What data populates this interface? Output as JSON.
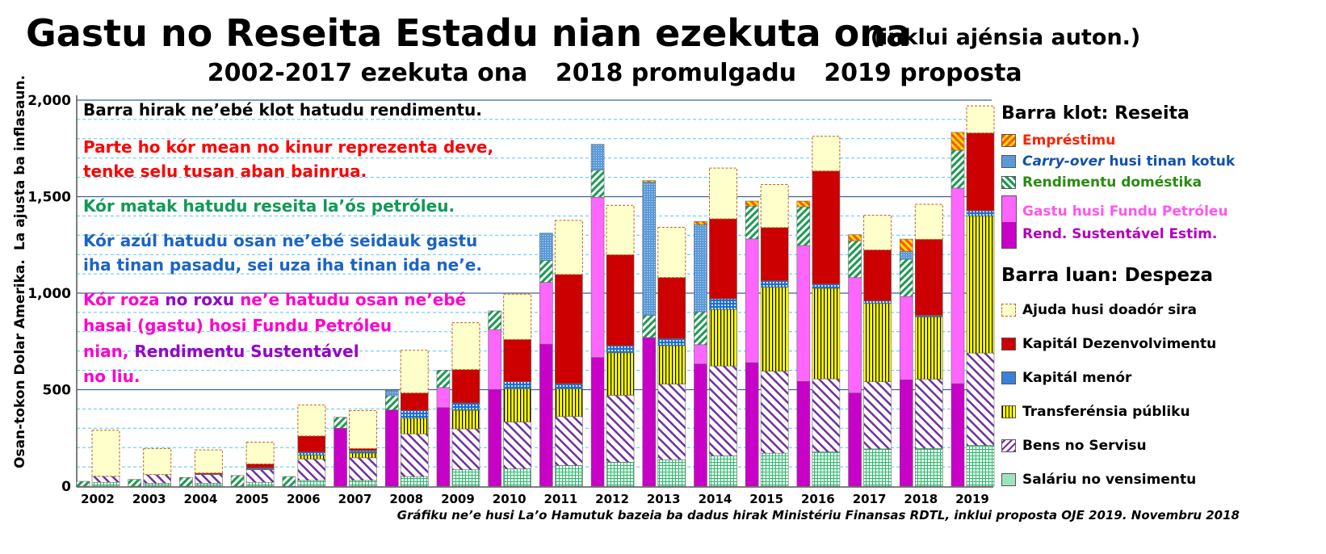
{
  "chart_data": {
    "type": "bar",
    "stacked": true,
    "title": "Gastu no Reseita Estadu nian ezekuta ona",
    "title_note": "(inklui ajénsia auton.)",
    "subtitle": [
      "2002-2017 ezekuta ona",
      "2018 promulgadu",
      "2019 proposta"
    ],
    "ylabel": [
      "Osan-tokon Dolar Amerika.",
      "La ajusta ba inflasaun."
    ],
    "ylim": [
      0,
      2000
    ],
    "yticks": [
      0,
      500,
      1000,
      1500,
      2000
    ],
    "ytick_labels": [
      "0",
      "500",
      "1,000",
      "1,500",
      "2,000"
    ],
    "grid": true,
    "categories": [
      "2002",
      "2003",
      "2004",
      "2005",
      "2006",
      "2007",
      "2008",
      "2009",
      "2010",
      "2011",
      "2012",
      "2013",
      "2014",
      "2015",
      "2016",
      "2017",
      "2018",
      "2019"
    ],
    "revenue": {
      "heading": "Barra klot: Reseita",
      "series": [
        {
          "key": "sust",
          "name": "Rend. Sustentável Estim.",
          "color": "#c800c8",
          "values": [
            0,
            0,
            0,
            0,
            0,
            300,
            395,
            407,
            501,
            736,
            667,
            770,
            633,
            640,
            543,
            483,
            551,
            531
          ]
        },
        {
          "key": "pf",
          "name": "Gastu husi Fundu Petróleu",
          "color": "#ff66ff",
          "values": [
            0,
            0,
            0,
            0,
            0,
            0,
            0,
            104,
            310,
            320,
            830,
            0,
            100,
            641,
            704,
            598,
            432,
            1013
          ]
        },
        {
          "key": "dom",
          "name": "Rendimentu doméstika",
          "color": "#1a9a50",
          "values": [
            25,
            35,
            45,
            55,
            50,
            57,
            73,
            90,
            97,
            113,
            140,
            115,
            170,
            170,
            200,
            190,
            192,
            197
          ]
        },
        {
          "key": "carry",
          "name": "husi tinan kotuk",
          "name_italic": "Carry-over",
          "color": "#3a7fc8",
          "values": [
            0,
            0,
            0,
            0,
            0,
            0,
            29,
            0,
            0,
            142,
            134,
            690,
            452,
            0,
            0,
            0,
            42,
            0
          ]
        },
        {
          "key": "loan",
          "name": "Empréstimu",
          "color": "#ff8800",
          "values": [
            0,
            0,
            0,
            0,
            0,
            0,
            0,
            0,
            0,
            0,
            0,
            8,
            16,
            26,
            30,
            32,
            63,
            92
          ]
        }
      ]
    },
    "expenditure": {
      "heading": "Barra luan: Despeza",
      "series": [
        {
          "key": "sal",
          "name": "Saláriu no vensimentu",
          "color": "#22bb66",
          "values": [
            20,
            15,
            15,
            20,
            30,
            30,
            50,
            85,
            90,
            107,
            124,
            137,
            157,
            171,
            177,
            193,
            195,
            211
          ]
        },
        {
          "key": "bens",
          "name": "Bens no Servisu",
          "color": "#7030a0",
          "values": [
            31,
            45,
            45,
            65,
            111,
            117,
            221,
            212,
            243,
            254,
            347,
            392,
            466,
            425,
            379,
            348,
            360,
            479
          ]
        },
        {
          "key": "trans",
          "name": "Transferénsia públiku",
          "color": "#ffff00",
          "values": [
            0,
            0,
            0,
            3,
            20,
            24,
            80,
            96,
            171,
            143,
            220,
            199,
            292,
            435,
            469,
            406,
            322,
            710
          ]
        },
        {
          "key": "minor",
          "name": "Kapitál menór",
          "color": "#1f6fd0",
          "values": [
            0,
            0,
            2,
            7,
            16,
            13,
            41,
            38,
            37,
            27,
            37,
            36,
            56,
            33,
            22,
            13,
            8,
            27
          ]
        },
        {
          "key": "dev",
          "name": "Kapitál Dezenvolvimentu",
          "color": "#cc0000",
          "values": [
            0,
            0,
            6,
            20,
            83,
            11,
            91,
            173,
            219,
            566,
            471,
            317,
            414,
            276,
            586,
            264,
            394,
            403
          ]
        },
        {
          "key": "donor",
          "name": "Ajuda husi doadór sira",
          "color": "#ffffcc",
          "values": [
            239,
            135,
            120,
            113,
            161,
            196,
            221,
            243,
            235,
            280,
            256,
            260,
            263,
            223,
            180,
            179,
            181,
            140
          ]
        }
      ]
    },
    "annotations": {
      "black": "Barra hirak ne’ebé klot hatudu rendimentu.",
      "red": [
        "Parte ho kór mean no kinur reprezenta deve,",
        "tenke selu tusan aban bainrua."
      ],
      "green": "Kór matak hatudu reseita la’ós petróleu.",
      "blue": [
        "Kór azúl hatudu osan ne’ebé seidauk gastu",
        "iha tinan pasadu, sei uza iha tinan ida ne’e."
      ],
      "pink": {
        "l1a": "Kór roza",
        "l1b": " no roxu",
        "l1c": " ne’e hatudu osan ne’ebé",
        "l2": "hasai (gastu) hosi Fundu Petróleu",
        "l3a": "nian, ",
        "l3b": "Rendimentu Sustentável",
        "l4": "no liu."
      }
    },
    "source": "Gráfiku ne’e husi La’o Hamutuk bazeia ba dadus hirak Ministériu Finansas RDTL, inklui proposta OJE 2019. Novembru 2018"
  }
}
